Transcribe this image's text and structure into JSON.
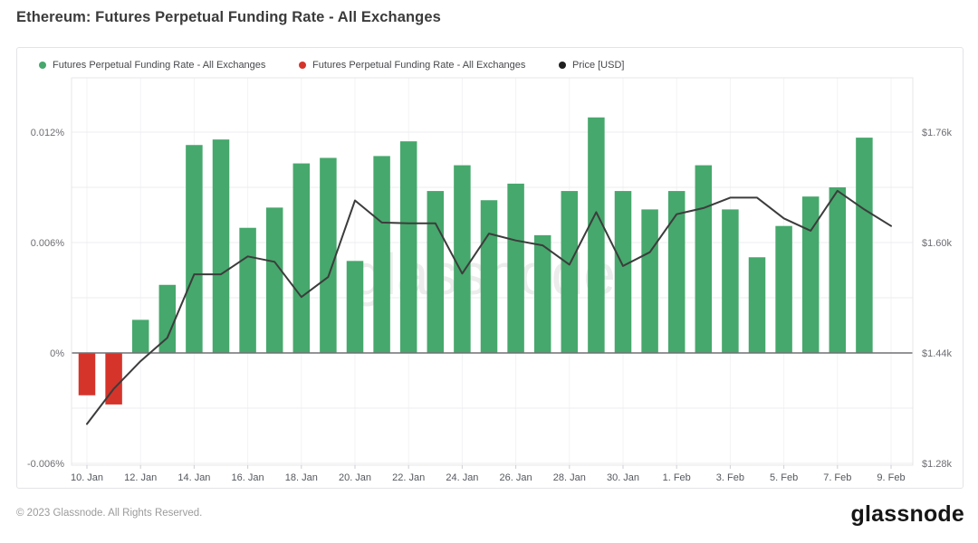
{
  "page": {
    "title": "Ethereum: Futures Perpetual Funding Rate - All Exchanges",
    "footer_copyright": "© 2023 Glassnode. All Rights Reserved.",
    "brand_logo": "glassnode",
    "watermark": "glassnode"
  },
  "legend": [
    {
      "id": "funding-positive",
      "label": "Futures Perpetual Funding Rate - All Exchanges",
      "color": "#46a86c"
    },
    {
      "id": "funding-negative",
      "label": "Futures Perpetual Funding Rate - All Exchanges",
      "color": "#d5342b"
    },
    {
      "id": "price",
      "label": "Price [USD]",
      "color": "#1f1f1f"
    }
  ],
  "chart_data": {
    "type": "bar+line",
    "title": "Ethereum: Futures Perpetual Funding Rate - All Exchanges",
    "grid": true,
    "legend_position": "top",
    "categories": [
      "10. Jan",
      "11. Jan",
      "12. Jan",
      "13. Jan",
      "14. Jan",
      "15. Jan",
      "16. Jan",
      "17. Jan",
      "18. Jan",
      "19. Jan",
      "20. Jan",
      "21. Jan",
      "22. Jan",
      "23. Jan",
      "24. Jan",
      "25. Jan",
      "26. Jan",
      "27. Jan",
      "28. Jan",
      "29. Jan",
      "30. Jan",
      "31. Jan",
      "1. Feb",
      "2. Feb",
      "3. Feb",
      "4. Feb",
      "5. Feb",
      "6. Feb",
      "7. Feb",
      "8. Feb",
      "9. Feb"
    ],
    "series": [
      {
        "name": "Futures Perpetual Funding Rate - All Exchanges",
        "type": "bar",
        "axis": "left",
        "unit": "%",
        "positive_color": "#46a86c",
        "negative_color": "#d5342b",
        "values": [
          -0.0023,
          -0.0028,
          0.0018,
          0.0037,
          0.0113,
          0.0116,
          0.0068,
          0.0079,
          0.0103,
          0.0106,
          0.005,
          0.0107,
          0.0115,
          0.0088,
          0.0102,
          0.0083,
          0.0092,
          0.0064,
          0.0088,
          0.0128,
          0.0088,
          0.0078,
          0.0088,
          0.0102,
          0.0078,
          0.0052,
          0.0069,
          0.0085,
          0.009,
          0.0117,
          null
        ]
      },
      {
        "name": "Price [USD]",
        "type": "line",
        "axis": "right",
        "unit": "USD",
        "color": "#3c3c3c",
        "values": [
          1337,
          1388,
          1428,
          1462,
          1554,
          1554,
          1580,
          1572,
          1521,
          1550,
          1661,
          1629,
          1628,
          1628,
          1555,
          1613,
          1603,
          1596,
          1568,
          1644,
          1566,
          1586,
          1641,
          1650,
          1665,
          1665,
          1635,
          1617,
          1675,
          1648,
          1624
        ]
      }
    ],
    "left_axis": {
      "min": -0.006,
      "max": 0.012,
      "ticks": [
        {
          "label": "0.012%",
          "value": 0.012
        },
        {
          "label": "0.006%",
          "value": 0.006
        },
        {
          "label": "0%",
          "value": 0
        },
        {
          "label": "-0.006%",
          "value": -0.006
        }
      ],
      "gridline_values": [
        0.012,
        0.009,
        0.006,
        0.003,
        0,
        -0.003,
        -0.006
      ]
    },
    "right_axis": {
      "min": 1280,
      "max": 1760,
      "ticks": [
        {
          "label": "$1.76k",
          "value": 1760
        },
        {
          "label": "$1.60k",
          "value": 1600
        },
        {
          "label": "$1.44k",
          "value": 1440
        },
        {
          "label": "$1.28k",
          "value": 1280
        }
      ]
    },
    "x_axis": {
      "tick_every": 2,
      "ticks": [
        {
          "label": "10. Jan",
          "index": 0
        },
        {
          "label": "12. Jan",
          "index": 2
        },
        {
          "label": "14. Jan",
          "index": 4
        },
        {
          "label": "16. Jan",
          "index": 6
        },
        {
          "label": "18. Jan",
          "index": 8
        },
        {
          "label": "20. Jan",
          "index": 10
        },
        {
          "label": "22. Jan",
          "index": 12
        },
        {
          "label": "24. Jan",
          "index": 14
        },
        {
          "label": "26. Jan",
          "index": 16
        },
        {
          "label": "28. Jan",
          "index": 18
        },
        {
          "label": "30. Jan",
          "index": 20
        },
        {
          "label": "1. Feb",
          "index": 22
        },
        {
          "label": "3. Feb",
          "index": 24
        },
        {
          "label": "5. Feb",
          "index": 26
        },
        {
          "label": "7. Feb",
          "index": 28
        },
        {
          "label": "9. Feb",
          "index": 30
        }
      ]
    }
  }
}
